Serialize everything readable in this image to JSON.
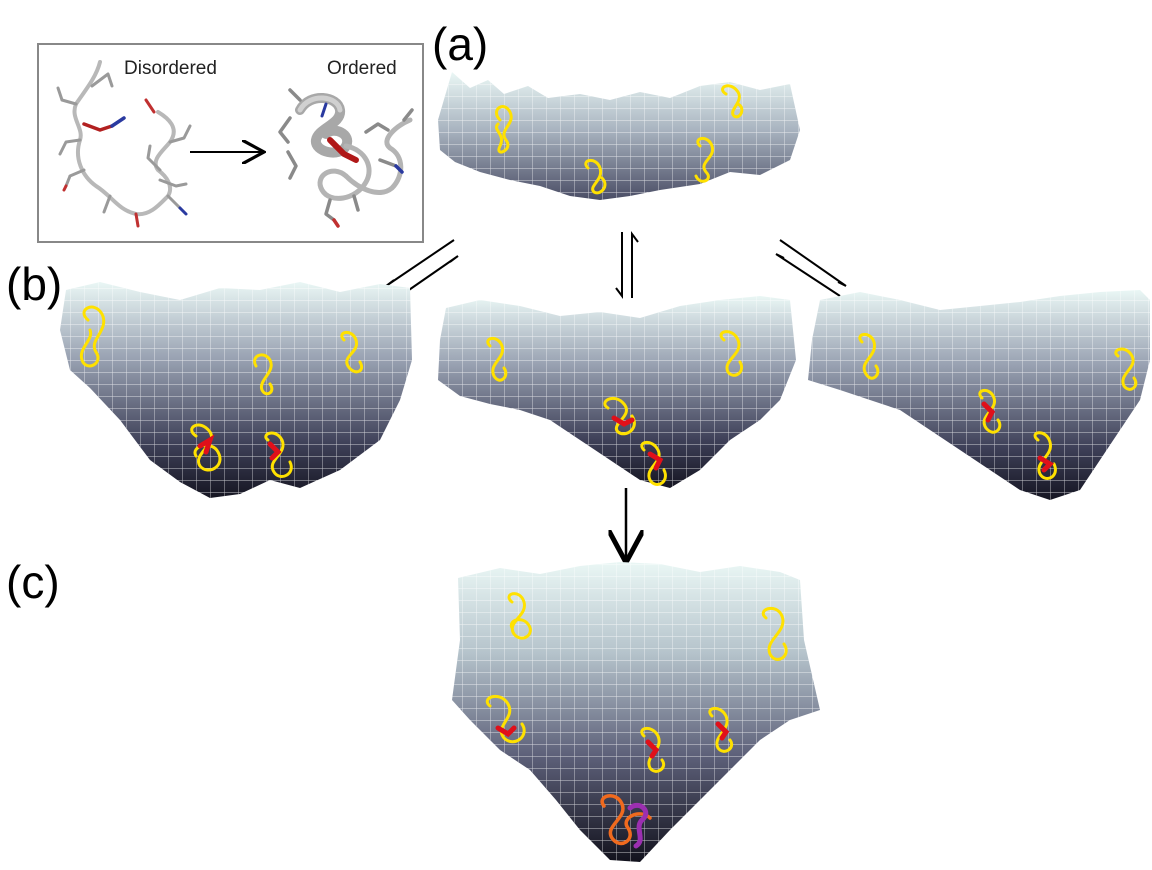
{
  "panels": {
    "a": "(a)",
    "b": "(b)",
    "c": "(c)"
  },
  "inset": {
    "disordered_label": "Disordered",
    "ordered_label": "Ordered"
  },
  "colors": {
    "surface_top": "#eaf7f5",
    "surface_mid": "#8f92a6",
    "surface_deep": "#1a1a2a",
    "grid_line": "#ffffff",
    "disordered_chain": "#ffe100",
    "ordered_segment": "#e0101a",
    "bound_complex_a": "#f06a1e",
    "bound_complex_b": "#9b2fb0",
    "inset_border": "#888888"
  }
}
